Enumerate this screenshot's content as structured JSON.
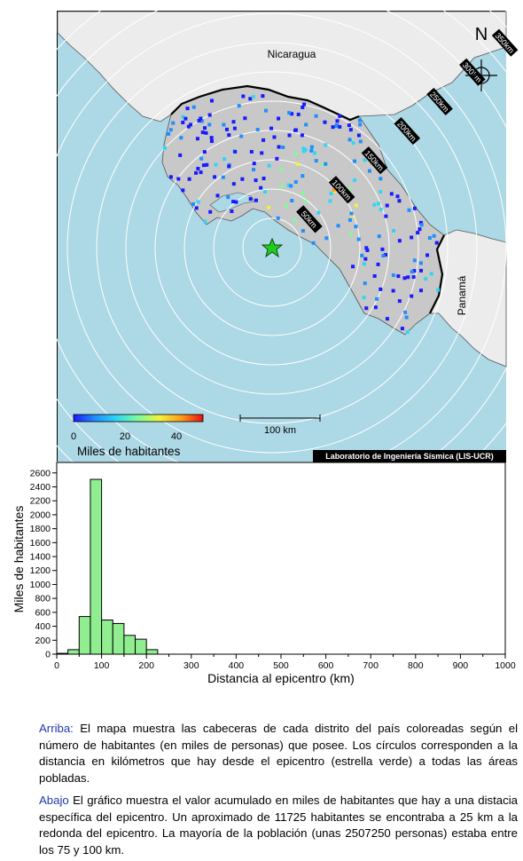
{
  "map": {
    "label_nicaragua": "Nicaragua",
    "label_panama": "Panamá",
    "north_label": "N",
    "ring_labels": [
      "50km",
      "100km",
      "150km",
      "200km",
      "250km",
      "300km",
      "350km"
    ],
    "colorbar": {
      "ticks": [
        "0",
        "20",
        "40"
      ],
      "title": "Miles de habitantes",
      "colors": [
        "#1a1aff",
        "#1f8fff",
        "#30d6f5",
        "#7dfc9a",
        "#f2f23a",
        "#ff9a1a",
        "#e61010"
      ]
    },
    "scale_label": "100 km",
    "credit": "Laboratorio de Ingeniería Sísmica (LIS-UCR)",
    "colors": {
      "sea": "#add8e6",
      "land": "#ececec",
      "country": "#c8c8c8",
      "epicenter": "#22cc22"
    }
  },
  "chart_data": {
    "type": "bar",
    "title": "",
    "xlabel": "Distancia al epicentro (km)",
    "ylabel": "Miles de habitantes",
    "xlim": [
      0,
      1000
    ],
    "ylim": [
      0,
      2750
    ],
    "x_ticks": [
      "0",
      "100",
      "200",
      "300",
      "400",
      "500",
      "600",
      "700",
      "800",
      "900",
      "1000"
    ],
    "y_ticks": [
      "0",
      "200",
      "400",
      "600",
      "800",
      "1000",
      "1200",
      "1400",
      "1600",
      "1800",
      "2000",
      "2200",
      "2400",
      "2600"
    ],
    "bin_width": 25,
    "bins": [
      {
        "start": 0,
        "value": 12
      },
      {
        "start": 25,
        "value": 65
      },
      {
        "start": 50,
        "value": 540
      },
      {
        "start": 75,
        "value": 2507
      },
      {
        "start": 100,
        "value": 490
      },
      {
        "start": 125,
        "value": 440
      },
      {
        "start": 150,
        "value": 270
      },
      {
        "start": 175,
        "value": 215
      },
      {
        "start": 200,
        "value": 65
      }
    ],
    "bar_color": "#90ee90",
    "grid": false
  },
  "captions": {
    "top_lead": "Arriba:",
    "top_text": " El mapa muestra las cabeceras de cada distrito del país coloreadas según el número de habitantes (en miles de personas) que posee.  Los círculos corresponden a la distancia en kilómetros que hay desde el epicentro (estrella verde) a todas las áreas pobladas.",
    "bottom_lead": "Abajo",
    "bottom_text": " El gráfico muestra el valor acumulado en miles de habitantes que hay a una distacia específica del epicentro.  Un aproximado de 11725 habitantes se encontraba a 25 km a la redonda del epicentro.  La mayoría de la población (unas 2507250 personas) estaba entre los 75 y 100 km."
  }
}
